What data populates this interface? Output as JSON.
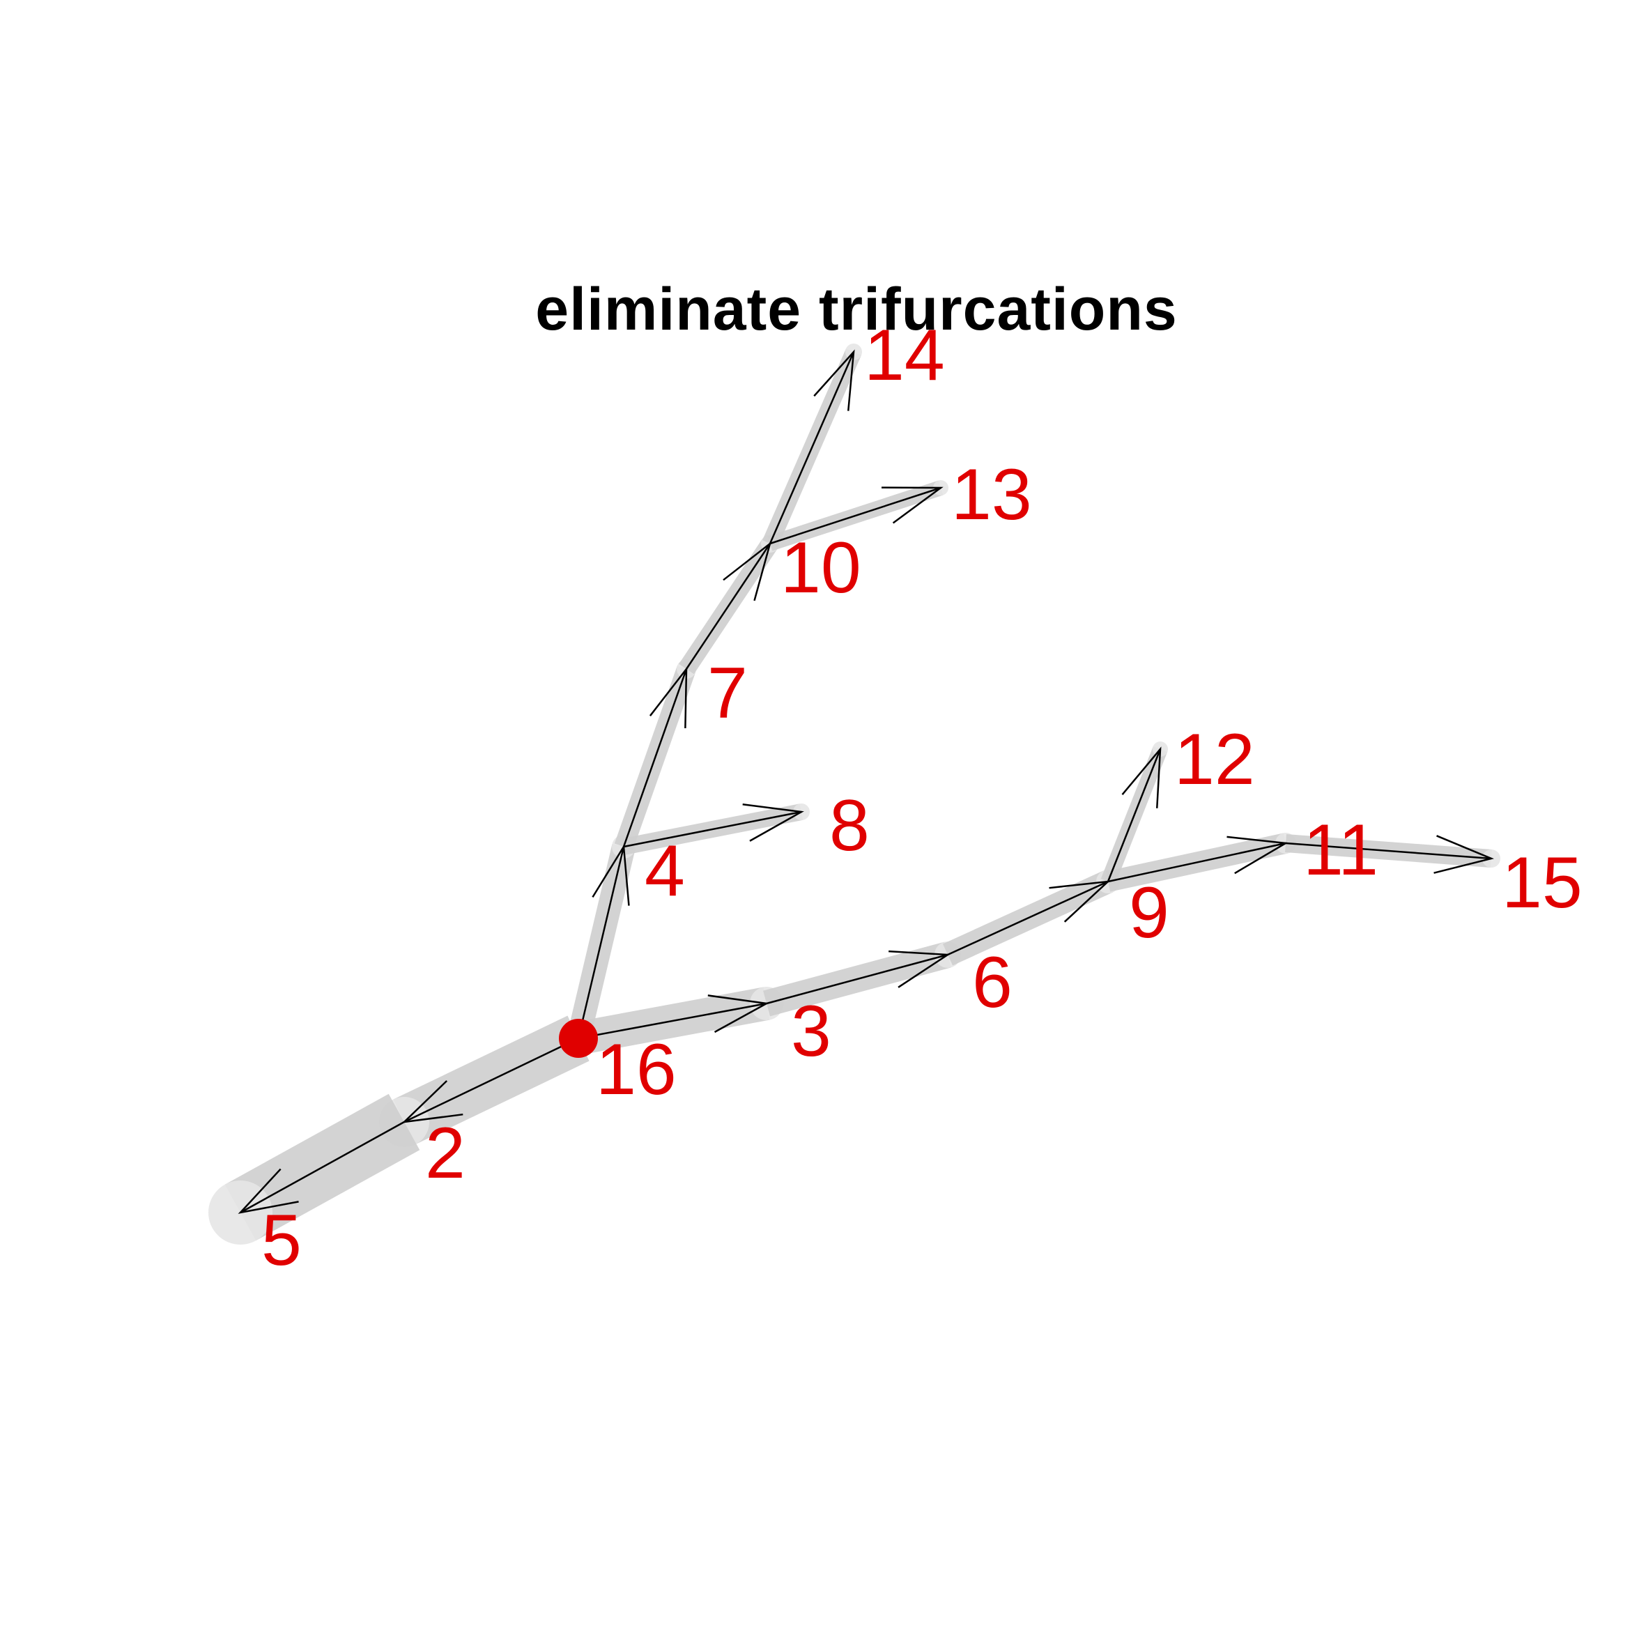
{
  "title": "eliminate trifurcations",
  "colors": {
    "segment": "#cfcfcf",
    "arrow": "#000000",
    "label": "#e00000",
    "root": "#e00000"
  },
  "root_node": "1",
  "nodes": [
    "1",
    "2",
    "3",
    "4",
    "5",
    "6",
    "7",
    "8",
    "9",
    "10",
    "11",
    "12",
    "13",
    "14",
    "15",
    "16"
  ],
  "edges": [
    {
      "from": "1",
      "to": "2"
    },
    {
      "from": "2",
      "to": "5"
    },
    {
      "from": "1",
      "to": "3"
    },
    {
      "from": "3",
      "to": "6"
    },
    {
      "from": "6",
      "to": "9"
    },
    {
      "from": "9",
      "to": "11"
    },
    {
      "from": "11",
      "to": "15"
    },
    {
      "from": "9",
      "to": "12"
    },
    {
      "from": "1",
      "to": "4"
    },
    {
      "from": "4",
      "to": "8"
    },
    {
      "from": "4",
      "to": "7"
    },
    {
      "from": "7",
      "to": "10"
    },
    {
      "from": "10",
      "to": "13"
    },
    {
      "from": "10",
      "to": "14"
    }
  ]
}
